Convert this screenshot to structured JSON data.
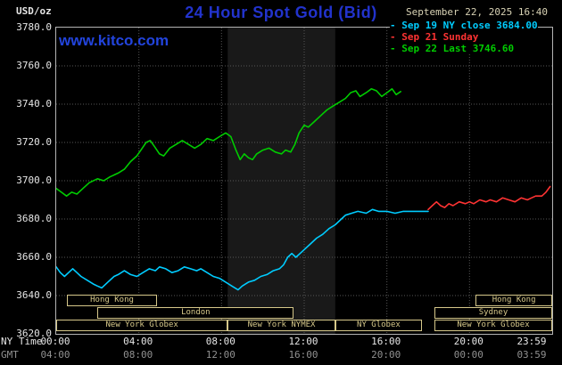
{
  "header": {
    "units_label": "USD/oz",
    "title": "24 Hour Spot Gold (Bid)",
    "datetime": "September 22, 2025 16:40",
    "watermark": "www.kitco.com",
    "legend": [
      {
        "marker": "-",
        "text": "Sep 19 NY close 3684.00",
        "color": "#00ccff"
      },
      {
        "marker": "-",
        "text": "Sep 21 Sunday",
        "color": "#ff3333"
      },
      {
        "marker": "-",
        "text": "Sep 22 Last 3746.60",
        "color": "#00cc00"
      }
    ]
  },
  "colors": {
    "background": "#000000",
    "title": "#2233cc",
    "watermark": "#2244dd",
    "axis": "#e6e6e6",
    "gmt": "#909090",
    "grid": "#565656",
    "border": "#b4b4b4",
    "session": "#d6c88a",
    "band": "#191919",
    "date": "#d8d2b4"
  },
  "axes": {
    "ny_row_label": "NY Time",
    "gmt_row_label": "GMT",
    "y_ticks": [
      {
        "v": 3780,
        "label": "3780.0"
      },
      {
        "v": 3760,
        "label": "3760.0"
      },
      {
        "v": 3740,
        "label": "3740.0"
      },
      {
        "v": 3720,
        "label": "3720.0"
      },
      {
        "v": 3700,
        "label": "3700.0"
      },
      {
        "v": 3680,
        "label": "3680.0"
      },
      {
        "v": 3660,
        "label": "3660.0"
      },
      {
        "v": 3640,
        "label": "3640.0"
      },
      {
        "v": 3620,
        "label": "3620.0"
      }
    ],
    "x_ticks": [
      {
        "t": 0,
        "ny": "00:00",
        "gmt": "04:00"
      },
      {
        "t": 4,
        "ny": "04:00",
        "gmt": "08:00"
      },
      {
        "t": 8,
        "ny": "08:00",
        "gmt": "12:00"
      },
      {
        "t": 12,
        "ny": "12:00",
        "gmt": "16:00"
      },
      {
        "t": 16,
        "ny": "16:00",
        "gmt": "20:00"
      },
      {
        "t": 20,
        "ny": "20:00",
        "gmt": "00:00"
      },
      {
        "t": 24,
        "ny": "23:59",
        "gmt": "03:59"
      }
    ]
  },
  "sessions": [
    {
      "row": 0,
      "label": "Hong Kong",
      "start": 0.5,
      "end": 4.9
    },
    {
      "row": 0,
      "label": "Hong Kong",
      "start": 20.3,
      "end": 24
    },
    {
      "row": 1,
      "label": "London",
      "start": 2.0,
      "end": 11.5
    },
    {
      "row": 1,
      "label": "Sydney",
      "start": 18.3,
      "end": 24
    },
    {
      "row": 2,
      "label": "New York Globex",
      "start": 0,
      "end": 8.3
    },
    {
      "row": 2,
      "label": "New York NYMEX",
      "start": 8.3,
      "end": 13.5
    },
    {
      "row": 2,
      "label": "NY Globex",
      "start": 13.5,
      "end": 17.7
    },
    {
      "row": 2,
      "label": "New York Globex",
      "start": 18.3,
      "end": 24
    }
  ],
  "chart_data": {
    "type": "line",
    "title": "24 Hour Spot Gold (Bid)",
    "xlabel": "NY Time (hours)",
    "ylabel": "USD/oz",
    "xlim": [
      0,
      24
    ],
    "ylim": [
      3620,
      3780
    ],
    "grid": true,
    "xgrid": [
      4,
      8,
      12,
      16,
      20
    ],
    "ygrid": [
      3640,
      3660,
      3680,
      3700,
      3720,
      3740,
      3760
    ],
    "nymex_band": [
      8.3,
      13.5
    ],
    "series": [
      {
        "name": "Sep 19 NY close",
        "color": "#00ccff",
        "close": 3684.0,
        "points": [
          [
            0,
            3655
          ],
          [
            0.2,
            3652
          ],
          [
            0.4,
            3650
          ],
          [
            0.6,
            3652
          ],
          [
            0.8,
            3654
          ],
          [
            1,
            3652
          ],
          [
            1.2,
            3650
          ],
          [
            1.5,
            3648
          ],
          [
            1.8,
            3646
          ],
          [
            2,
            3645
          ],
          [
            2.2,
            3644
          ],
          [
            2.5,
            3647
          ],
          [
            2.8,
            3650
          ],
          [
            3,
            3651
          ],
          [
            3.3,
            3653
          ],
          [
            3.6,
            3651
          ],
          [
            3.9,
            3650
          ],
          [
            4.2,
            3652
          ],
          [
            4.5,
            3654
          ],
          [
            4.8,
            3653
          ],
          [
            5,
            3655
          ],
          [
            5.3,
            3654
          ],
          [
            5.6,
            3652
          ],
          [
            5.9,
            3653
          ],
          [
            6.2,
            3655
          ],
          [
            6.5,
            3654
          ],
          [
            6.8,
            3653
          ],
          [
            7,
            3654
          ],
          [
            7.3,
            3652
          ],
          [
            7.6,
            3650
          ],
          [
            7.9,
            3649
          ],
          [
            8.2,
            3647
          ],
          [
            8.5,
            3645
          ],
          [
            8.8,
            3643
          ],
          [
            9,
            3645
          ],
          [
            9.3,
            3647
          ],
          [
            9.6,
            3648
          ],
          [
            9.9,
            3650
          ],
          [
            10.2,
            3651
          ],
          [
            10.5,
            3653
          ],
          [
            10.8,
            3654
          ],
          [
            11,
            3656
          ],
          [
            11.2,
            3660
          ],
          [
            11.4,
            3662
          ],
          [
            11.6,
            3660
          ],
          [
            11.8,
            3662
          ],
          [
            12,
            3664
          ],
          [
            12.3,
            3667
          ],
          [
            12.6,
            3670
          ],
          [
            12.9,
            3672
          ],
          [
            13.2,
            3675
          ],
          [
            13.5,
            3677
          ],
          [
            13.8,
            3680
          ],
          [
            14,
            3682
          ],
          [
            14.3,
            3683
          ],
          [
            14.6,
            3684
          ],
          [
            15,
            3683
          ],
          [
            15.3,
            3685
          ],
          [
            15.6,
            3684
          ],
          [
            16,
            3684
          ],
          [
            16.4,
            3683
          ],
          [
            16.8,
            3684
          ],
          [
            17.2,
            3684
          ],
          [
            17.6,
            3684
          ],
          [
            18,
            3684
          ]
        ]
      },
      {
        "name": "Sep 21 Sunday",
        "color": "#ff3333",
        "points": [
          [
            18,
            3685
          ],
          [
            18.2,
            3687
          ],
          [
            18.4,
            3689
          ],
          [
            18.6,
            3687
          ],
          [
            18.8,
            3686
          ],
          [
            19,
            3688
          ],
          [
            19.2,
            3687
          ],
          [
            19.5,
            3689
          ],
          [
            19.8,
            3688
          ],
          [
            20,
            3689
          ],
          [
            20.2,
            3688
          ],
          [
            20.5,
            3690
          ],
          [
            20.8,
            3689
          ],
          [
            21,
            3690
          ],
          [
            21.3,
            3689
          ],
          [
            21.6,
            3691
          ],
          [
            21.9,
            3690
          ],
          [
            22.2,
            3689
          ],
          [
            22.5,
            3691
          ],
          [
            22.8,
            3690
          ],
          [
            23,
            3691
          ],
          [
            23.2,
            3692
          ],
          [
            23.5,
            3692
          ],
          [
            23.7,
            3694
          ],
          [
            23.9,
            3697
          ]
        ]
      },
      {
        "name": "Sep 22",
        "color": "#00cc00",
        "last": 3746.6,
        "points": [
          [
            0,
            3696
          ],
          [
            0.25,
            3694
          ],
          [
            0.5,
            3692
          ],
          [
            0.75,
            3694
          ],
          [
            1,
            3693
          ],
          [
            1.3,
            3696
          ],
          [
            1.6,
            3699
          ],
          [
            2,
            3701
          ],
          [
            2.3,
            3700
          ],
          [
            2.6,
            3702
          ],
          [
            3,
            3704
          ],
          [
            3.3,
            3706
          ],
          [
            3.6,
            3710
          ],
          [
            3.9,
            3713
          ],
          [
            4.1,
            3716
          ],
          [
            4.35,
            3720
          ],
          [
            4.55,
            3721
          ],
          [
            4.75,
            3718
          ],
          [
            5,
            3714
          ],
          [
            5.2,
            3713
          ],
          [
            5.5,
            3717
          ],
          [
            5.8,
            3719
          ],
          [
            6.1,
            3721
          ],
          [
            6.4,
            3719
          ],
          [
            6.7,
            3717
          ],
          [
            7,
            3719
          ],
          [
            7.3,
            3722
          ],
          [
            7.6,
            3721
          ],
          [
            7.9,
            3723
          ],
          [
            8.2,
            3725
          ],
          [
            8.45,
            3723
          ],
          [
            8.7,
            3716
          ],
          [
            8.9,
            3711
          ],
          [
            9.1,
            3714
          ],
          [
            9.3,
            3712
          ],
          [
            9.5,
            3711
          ],
          [
            9.7,
            3714
          ],
          [
            10,
            3716
          ],
          [
            10.3,
            3717
          ],
          [
            10.6,
            3715
          ],
          [
            10.9,
            3714
          ],
          [
            11.1,
            3716
          ],
          [
            11.35,
            3715
          ],
          [
            11.55,
            3719
          ],
          [
            11.75,
            3725
          ],
          [
            12,
            3729
          ],
          [
            12.2,
            3728
          ],
          [
            12.5,
            3731
          ],
          [
            12.8,
            3734
          ],
          [
            13.1,
            3737
          ],
          [
            13.4,
            3739
          ],
          [
            13.7,
            3741
          ],
          [
            14,
            3743
          ],
          [
            14.25,
            3746
          ],
          [
            14.5,
            3747
          ],
          [
            14.7,
            3744
          ],
          [
            15,
            3746
          ],
          [
            15.25,
            3748
          ],
          [
            15.5,
            3747
          ],
          [
            15.75,
            3744
          ],
          [
            16,
            3746
          ],
          [
            16.25,
            3748
          ],
          [
            16.45,
            3745
          ],
          [
            16.67,
            3746.6
          ]
        ]
      }
    ]
  }
}
